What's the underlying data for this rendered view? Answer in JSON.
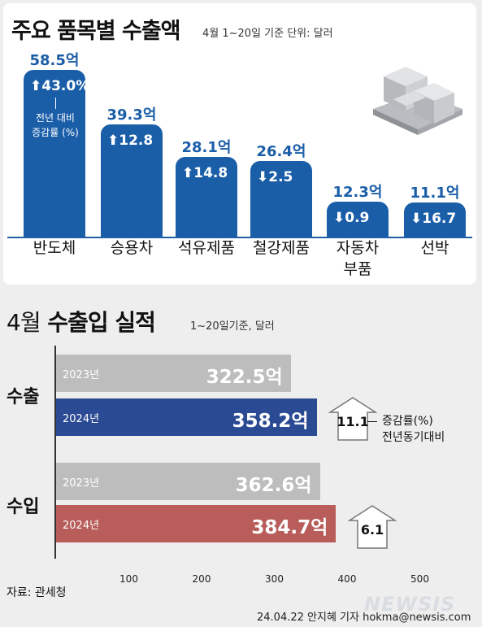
{
  "top": {
    "title": "주요 품목별 수출액",
    "subtitle": "4월 1~20일 기준 단위: 달러",
    "note_lines": [
      "전년 대비",
      "증감률 (%)"
    ]
  },
  "bottom": {
    "title_prefix": "4월",
    "title_main": "수출입 실적",
    "subtitle": "1~20일기준, 달러",
    "legend_lines": [
      "증감률(%)",
      "전년동기대비"
    ]
  },
  "source": "자료: 관세청",
  "credit": "24.04.22 안지혜 기자 hokma@newsis.com",
  "logo": "NEWSIS",
  "colors": {
    "blue": "#1a5ea8",
    "gray_bar": "#bdbdbd",
    "export_2024": "#2b4a94",
    "import_2024": "#b85d5a"
  },
  "chart_data": [
    {
      "type": "bar",
      "title": "주요 품목별 수출액",
      "subtitle": "4월 1~20일 기준 단위: 달러",
      "categories": [
        "반도체",
        "승용차",
        "석유제품",
        "철강제품",
        "자동차\n부품",
        "선박"
      ],
      "values": [
        58.5,
        39.3,
        28.1,
        26.4,
        12.3,
        11.1
      ],
      "value_labels": [
        "58.5억",
        "39.3억",
        "28.1억",
        "26.4억",
        "12.3억",
        "11.1억"
      ],
      "change": [
        43.0,
        12.8,
        14.8,
        -2.5,
        -0.9,
        -16.7
      ],
      "change_labels": [
        "43.0%",
        "12.8",
        "14.8",
        "2.5",
        "0.9",
        "16.7"
      ],
      "unit": "억 달러"
    },
    {
      "type": "bar",
      "orientation": "horizontal",
      "title": "4월 수출입 실적",
      "subtitle": "1~20일기준, 달러",
      "groups": [
        {
          "name": "수출",
          "bars": [
            {
              "year": "2023년",
              "value": 322.5,
              "label": "322.5억"
            },
            {
              "year": "2024년",
              "value": 358.2,
              "label": "358.2억"
            }
          ],
          "change": 11.1,
          "change_label": "11.1"
        },
        {
          "name": "수입",
          "bars": [
            {
              "year": "2023년",
              "value": 362.6,
              "label": "362.6억"
            },
            {
              "year": "2024년",
              "value": 384.7,
              "label": "384.7억"
            }
          ],
          "change": 6.1,
          "change_label": "6.1"
        }
      ],
      "xticks": [
        100,
        200,
        300,
        400,
        500
      ],
      "xlim": [
        0,
        500
      ]
    }
  ]
}
